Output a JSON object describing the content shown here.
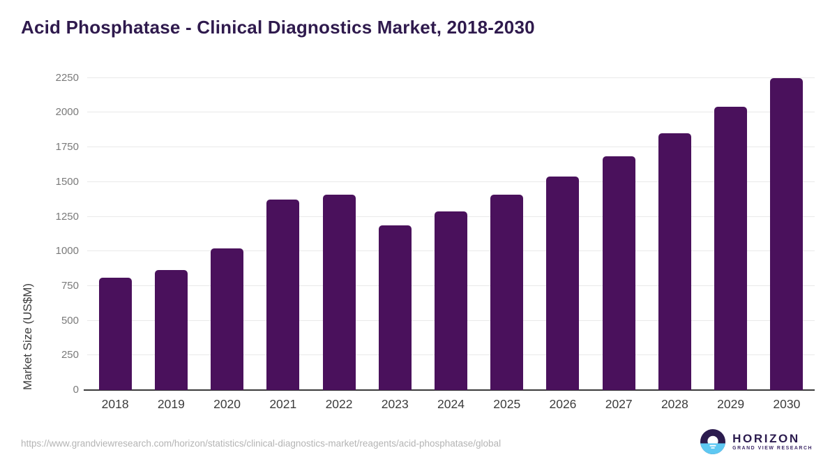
{
  "chart_data": {
    "type": "bar",
    "title": "Acid Phosphatase - Clinical Diagnostics Market, 2018-2030",
    "categories": [
      "2018",
      "2019",
      "2020",
      "2021",
      "2022",
      "2023",
      "2024",
      "2025",
      "2026",
      "2027",
      "2028",
      "2029",
      "2030"
    ],
    "values": [
      810,
      865,
      1020,
      1375,
      1410,
      1185,
      1290,
      1410,
      1540,
      1685,
      1850,
      2040,
      2250
    ],
    "xlabel": "",
    "ylabel": "Market Size (US$M)",
    "ylim": [
      0,
      2250
    ],
    "ytick_step": 250,
    "yticks": [
      0,
      250,
      500,
      750,
      1000,
      1250,
      1500,
      1750,
      2000,
      2250
    ],
    "grid": true,
    "legend": "none",
    "bar_color": "#4a115c"
  },
  "colors": {
    "title": "#2f1a4d",
    "bar": "#4a115c",
    "axis_line": "#3a3a3a",
    "gridline": "#e9e9e9",
    "y_tick_text": "#7a7a7a",
    "x_tick_text": "#3c3c3c",
    "source_text": "#b4b4b4",
    "logo_navy": "#2b1b4e",
    "logo_blue": "#5ec8f2"
  },
  "footer": {
    "source_url": "https://www.grandviewresearch.com/horizon/statistics/clinical-diagnostics-market/reagents/acid-phosphatase/global",
    "logo": {
      "name": "HORIZON",
      "subtitle": "GRAND VIEW RESEARCH"
    }
  }
}
